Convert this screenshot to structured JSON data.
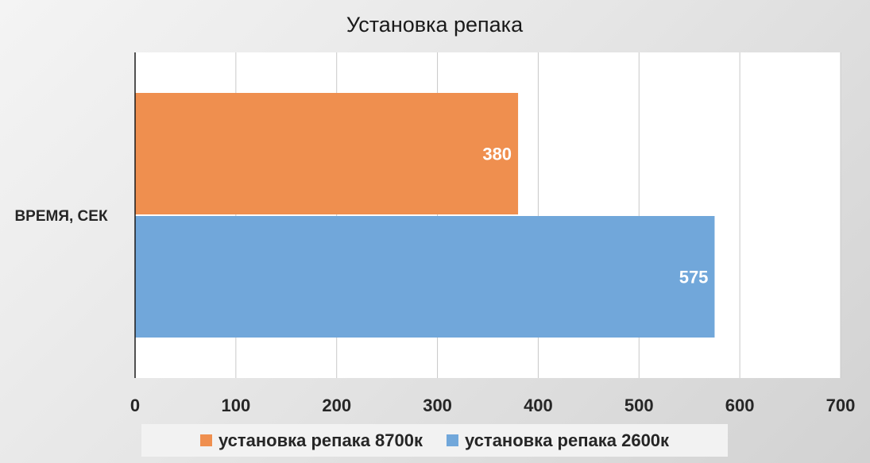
{
  "chart_data": {
    "type": "bar",
    "orientation": "horizontal",
    "title": "Установка репака",
    "categories": [
      "ВРЕМЯ, СЕК"
    ],
    "series": [
      {
        "name": "установка репака 8700к",
        "values": [
          380
        ],
        "color": "#ef8f4f"
      },
      {
        "name": "установка репака 2600к",
        "values": [
          575
        ],
        "color": "#71a7da"
      }
    ],
    "xlabel": "",
    "ylabel": "",
    "xlim": [
      0,
      700
    ],
    "x_ticks": [
      0,
      100,
      200,
      300,
      400,
      500,
      600,
      700
    ],
    "grid": true,
    "legend_position": "bottom",
    "data_labels": true
  }
}
